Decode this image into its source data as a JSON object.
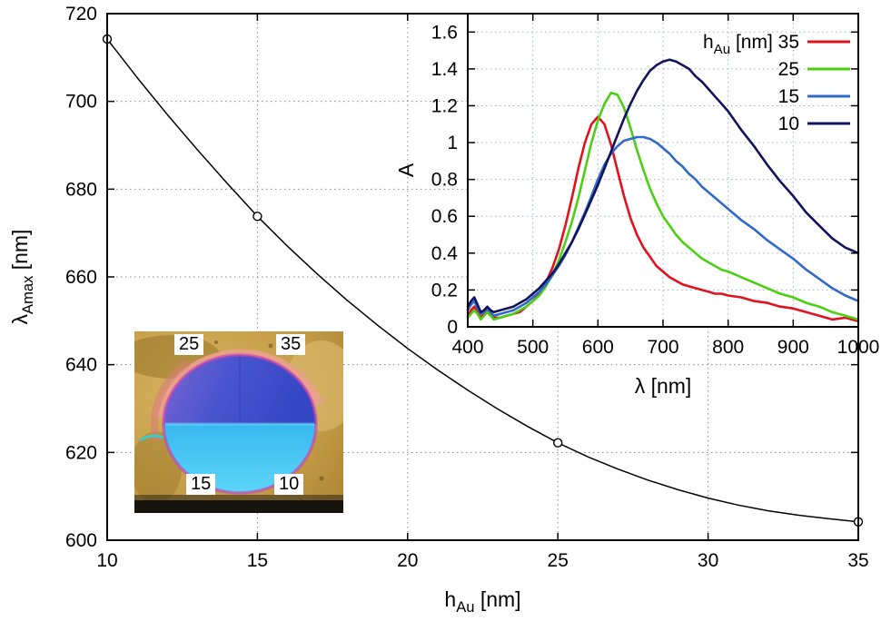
{
  "chart_data": [
    {
      "type": "line",
      "title": "",
      "xlabel": {
        "pre": "h",
        "sub": "Au",
        "post": " [nm]"
      },
      "ylabel": {
        "pre": "λ",
        "sub": "Amax",
        "post": " [nm]"
      },
      "xlim": [
        10,
        35
      ],
      "ylim": [
        600,
        720
      ],
      "xticks": [
        "10",
        "15",
        "20",
        "25",
        "30",
        "35"
      ],
      "yticks": [
        "600",
        "620",
        "640",
        "660",
        "680",
        "700",
        "720"
      ],
      "grid": true,
      "x": [
        10,
        11,
        12,
        13,
        14,
        15,
        16,
        17,
        18,
        19,
        20,
        21,
        22,
        23,
        24,
        25,
        26,
        27,
        28,
        29,
        30,
        31,
        32,
        33,
        34,
        35
      ],
      "series": [
        {
          "name": "lambda-Amax",
          "color": "#000000",
          "values": [
            714.2,
            705.4,
            697.0,
            689.0,
            681.3,
            673.8,
            667.0,
            660.6,
            654.6,
            649.0,
            643.7,
            638.8,
            634.2,
            629.9,
            625.9,
            622.2,
            619.0,
            616.2,
            613.7,
            611.5,
            609.6,
            608.0,
            606.7,
            605.7,
            604.9,
            604.2
          ]
        }
      ],
      "markers": [
        [
          10,
          714.2
        ],
        [
          15,
          673.8
        ],
        [
          25,
          622.2
        ],
        [
          35,
          604.2
        ]
      ]
    },
    {
      "type": "line",
      "title": "",
      "xlabel": {
        "pre": "λ",
        "sub": "",
        "post": " [nm]"
      },
      "ylabel": {
        "pre": "A",
        "sub": "",
        "post": ""
      },
      "xlim": [
        400,
        1000
      ],
      "ylim": [
        0,
        1.7
      ],
      "xticks": [
        "400",
        "500",
        "600",
        "700",
        "800",
        "900",
        "1000"
      ],
      "yticks": [
        "0",
        "0.2",
        "0.4",
        "0.6",
        "0.8",
        "1",
        "1.2",
        "1.4",
        "1.6"
      ],
      "grid": true,
      "legend_title": {
        "pre": "h",
        "sub": "Au",
        "post": " [nm]"
      },
      "legend_position": "top-right",
      "x": [
        400,
        405,
        410,
        415,
        420,
        425,
        430,
        435,
        440,
        450,
        460,
        470,
        480,
        490,
        500,
        510,
        520,
        530,
        540,
        550,
        560,
        570,
        580,
        590,
        600,
        610,
        620,
        630,
        640,
        650,
        660,
        670,
        680,
        690,
        700,
        710,
        720,
        730,
        740,
        750,
        760,
        770,
        780,
        790,
        800,
        820,
        840,
        860,
        880,
        900,
        920,
        940,
        960,
        980,
        1000
      ],
      "series": [
        {
          "name": "35",
          "color": "#e1121e",
          "values": [
            0.06,
            0.09,
            0.11,
            0.08,
            0.05,
            0.07,
            0.1,
            0.07,
            0.05,
            0.05,
            0.06,
            0.07,
            0.08,
            0.11,
            0.14,
            0.18,
            0.24,
            0.32,
            0.42,
            0.55,
            0.7,
            0.86,
            1.0,
            1.1,
            1.14,
            1.1,
            0.99,
            0.85,
            0.71,
            0.59,
            0.5,
            0.43,
            0.38,
            0.33,
            0.3,
            0.27,
            0.25,
            0.23,
            0.22,
            0.21,
            0.2,
            0.19,
            0.18,
            0.18,
            0.17,
            0.16,
            0.14,
            0.13,
            0.11,
            0.1,
            0.08,
            0.06,
            0.04,
            0.05,
            0.03
          ]
        },
        {
          "name": "25",
          "color": "#4ccf13",
          "values": [
            0.05,
            0.07,
            0.09,
            0.07,
            0.04,
            0.06,
            0.08,
            0.06,
            0.04,
            0.05,
            0.06,
            0.07,
            0.09,
            0.11,
            0.14,
            0.17,
            0.22,
            0.28,
            0.36,
            0.46,
            0.57,
            0.7,
            0.85,
            1.0,
            1.12,
            1.21,
            1.27,
            1.26,
            1.19,
            1.08,
            0.96,
            0.85,
            0.75,
            0.67,
            0.6,
            0.55,
            0.5,
            0.46,
            0.43,
            0.4,
            0.37,
            0.35,
            0.33,
            0.31,
            0.3,
            0.27,
            0.24,
            0.21,
            0.18,
            0.16,
            0.13,
            0.11,
            0.08,
            0.06,
            0.04
          ]
        },
        {
          "name": "15",
          "color": "#3069c9",
          "values": [
            0.09,
            0.12,
            0.14,
            0.1,
            0.07,
            0.08,
            0.1,
            0.08,
            0.06,
            0.07,
            0.08,
            0.09,
            0.11,
            0.13,
            0.16,
            0.19,
            0.23,
            0.28,
            0.33,
            0.39,
            0.46,
            0.54,
            0.62,
            0.71,
            0.8,
            0.88,
            0.94,
            0.98,
            1.01,
            1.02,
            1.03,
            1.03,
            1.02,
            1.0,
            0.97,
            0.94,
            0.9,
            0.87,
            0.83,
            0.8,
            0.76,
            0.73,
            0.7,
            0.67,
            0.64,
            0.58,
            0.53,
            0.47,
            0.42,
            0.37,
            0.31,
            0.26,
            0.21,
            0.17,
            0.14
          ]
        },
        {
          "name": "10",
          "color": "#12125e",
          "values": [
            0.11,
            0.14,
            0.16,
            0.12,
            0.08,
            0.09,
            0.11,
            0.09,
            0.08,
            0.09,
            0.1,
            0.11,
            0.13,
            0.15,
            0.18,
            0.21,
            0.25,
            0.29,
            0.34,
            0.4,
            0.46,
            0.53,
            0.61,
            0.69,
            0.77,
            0.86,
            0.95,
            1.04,
            1.13,
            1.21,
            1.28,
            1.34,
            1.39,
            1.42,
            1.44,
            1.45,
            1.44,
            1.42,
            1.4,
            1.36,
            1.33,
            1.29,
            1.25,
            1.21,
            1.17,
            1.07,
            0.98,
            0.88,
            0.79,
            0.71,
            0.62,
            0.55,
            0.48,
            0.43,
            0.4
          ]
        }
      ]
    }
  ],
  "photo_inset": {
    "labels": [
      "25",
      "35",
      "15",
      "10"
    ]
  }
}
